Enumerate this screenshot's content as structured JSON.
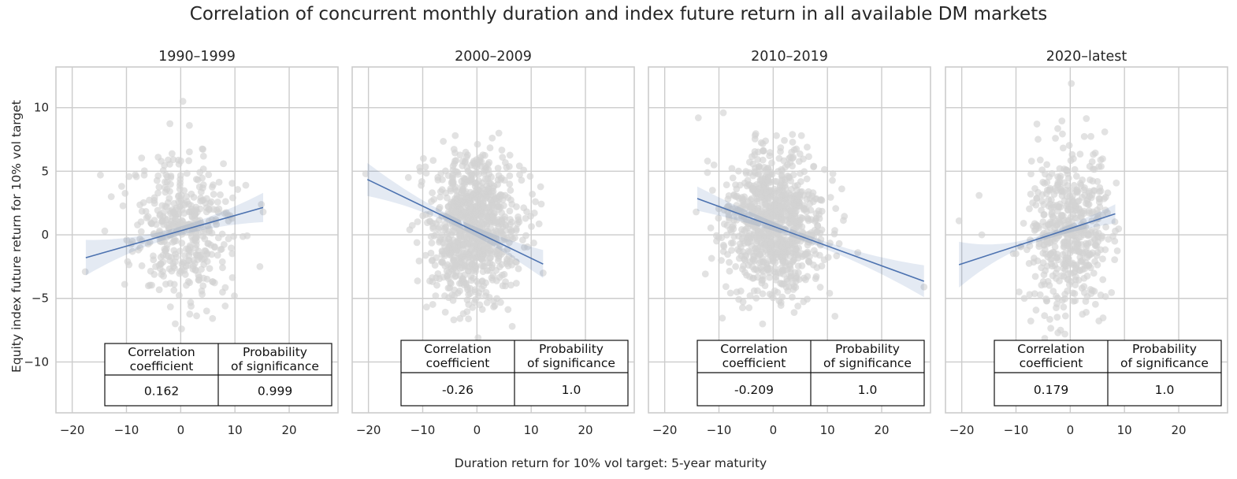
{
  "title": "Correlation of concurrent monthly duration and index future return in all available DM markets",
  "xlabel": "Duration return for 10% vol target: 5-year maturity",
  "ylabel": "Equity index future return for 10% vol target",
  "table_headers": [
    [
      "Correlation",
      "coefficient"
    ],
    [
      "Probability",
      "of significance"
    ]
  ],
  "colors": {
    "scatter": "#d3d3d3",
    "line": "#4c72b0",
    "band": "#4c72b0",
    "grid": "#cccccc",
    "spine": "#cccccc"
  },
  "chart_data": [
    {
      "type": "scatter",
      "title": "1990–1999",
      "xlim": [
        -23,
        29
      ],
      "ylim": [
        -14,
        13.2
      ],
      "xticks": [
        -20,
        -10,
        0,
        10,
        20
      ],
      "yticks": [
        -10,
        -5,
        0,
        5,
        10
      ],
      "grid": true,
      "regression": {
        "x": [
          -17.5,
          15.2
        ],
        "y": [
          -1.8,
          2.15
        ],
        "ci_low_ends": [
          -3.2,
          1.0
        ],
        "ci_high_ends": [
          -0.4,
          3.3
        ]
      },
      "cloud": {
        "center": [
          0.5,
          0.6
        ],
        "sx": 4.5,
        "sy": 2.7,
        "n": 420,
        "xrange": [
          -18,
          16
        ],
        "yrange": [
          -8,
          10.6
        ]
      },
      "outliers": [
        [
          -17.6,
          -2.9
        ],
        [
          -14.8,
          4.7
        ],
        [
          -12.8,
          3.0
        ],
        [
          -14.0,
          0.3
        ],
        [
          -1.0,
          -7.0
        ],
        [
          0.4,
          10.5
        ],
        [
          1.6,
          8.6
        ],
        [
          15.2,
          1.8
        ],
        [
          14.6,
          -2.5
        ],
        [
          9.9,
          -4.8
        ],
        [
          12.0,
          3.9
        ],
        [
          8.2,
          -5.6
        ]
      ],
      "correlation": "0.162",
      "probability": "0.999"
    },
    {
      "type": "scatter",
      "title": "2000–2009",
      "xlim": [
        -23,
        29
      ],
      "ylim": [
        -14,
        13.2
      ],
      "xticks": [
        -20,
        -10,
        0,
        10,
        20
      ],
      "yticks": [
        -10,
        -5,
        0,
        5,
        10
      ],
      "grid": true,
      "regression": {
        "x": [
          -20.2,
          12.2
        ],
        "y": [
          4.35,
          -2.3
        ],
        "ci_low_ends": [
          3.0,
          -3.4
        ],
        "ci_high_ends": [
          5.6,
          -1.2
        ]
      },
      "cloud": {
        "center": [
          -0.5,
          0.6
        ],
        "sx": 4.3,
        "sy": 2.8,
        "n": 900,
        "xrange": [
          -13,
          12
        ],
        "yrange": [
          -8.3,
          8
        ]
      },
      "outliers": [
        [
          -20.5,
          4.8
        ],
        [
          -12.4,
          0.4
        ],
        [
          12.2,
          -3.0
        ],
        [
          -4.0,
          7.8
        ],
        [
          0.2,
          -8.1
        ],
        [
          6.5,
          -7.2
        ]
      ],
      "correlation": "-0.26",
      "probability": "1.0"
    },
    {
      "type": "scatter",
      "title": "2010–2019",
      "xlim": [
        -23,
        29
      ],
      "ylim": [
        -14,
        13.2
      ],
      "xticks": [
        -20,
        -10,
        0,
        10,
        20
      ],
      "yticks": [
        -10,
        -5,
        0,
        5,
        10
      ],
      "grid": true,
      "regression": {
        "x": [
          -14.0,
          27.8
        ],
        "y": [
          2.85,
          -3.65
        ],
        "ci_low_ends": [
          1.9,
          -4.9
        ],
        "ci_high_ends": [
          3.8,
          -2.4
        ]
      },
      "cloud": {
        "center": [
          0.0,
          0.8
        ],
        "sx": 4.5,
        "sy": 2.8,
        "n": 900,
        "xrange": [
          -14,
          14
        ],
        "yrange": [
          -8.5,
          8
        ]
      },
      "outliers": [
        [
          -13.8,
          9.2
        ],
        [
          -12.1,
          5.8
        ],
        [
          -9.2,
          9.6
        ],
        [
          -14.2,
          1.8
        ],
        [
          27.8,
          -4.1
        ],
        [
          10.4,
          -4.6
        ],
        [
          15.6,
          -1.4
        ],
        [
          0.6,
          7.8
        ]
      ],
      "correlation": "-0.209",
      "probability": "1.0"
    },
    {
      "type": "scatter",
      "title": "2020–latest",
      "xlim": [
        -23,
        29
      ],
      "ylim": [
        -14,
        13.2
      ],
      "xticks": [
        -20,
        -10,
        0,
        10,
        20
      ],
      "yticks": [
        -10,
        -5,
        0,
        5,
        10
      ],
      "grid": true,
      "regression": {
        "x": [
          -20.5,
          8.3
        ],
        "y": [
          -2.35,
          1.65
        ],
        "ci_low_ends": [
          -4.2,
          0.9
        ],
        "ci_high_ends": [
          -0.6,
          2.4
        ]
      },
      "cloud": {
        "center": [
          0.0,
          0.4
        ],
        "sx": 3.6,
        "sy": 3.2,
        "n": 520,
        "xrange": [
          -14,
          9
        ],
        "yrange": [
          -8.3,
          12
        ]
      },
      "outliers": [
        [
          -20.5,
          1.1
        ],
        [
          -16.8,
          3.1
        ],
        [
          -16.3,
          0.0
        ],
        [
          0.2,
          11.9
        ],
        [
          8.3,
          0.3
        ]
      ],
      "correlation": "0.179",
      "probability": "1.0"
    }
  ]
}
